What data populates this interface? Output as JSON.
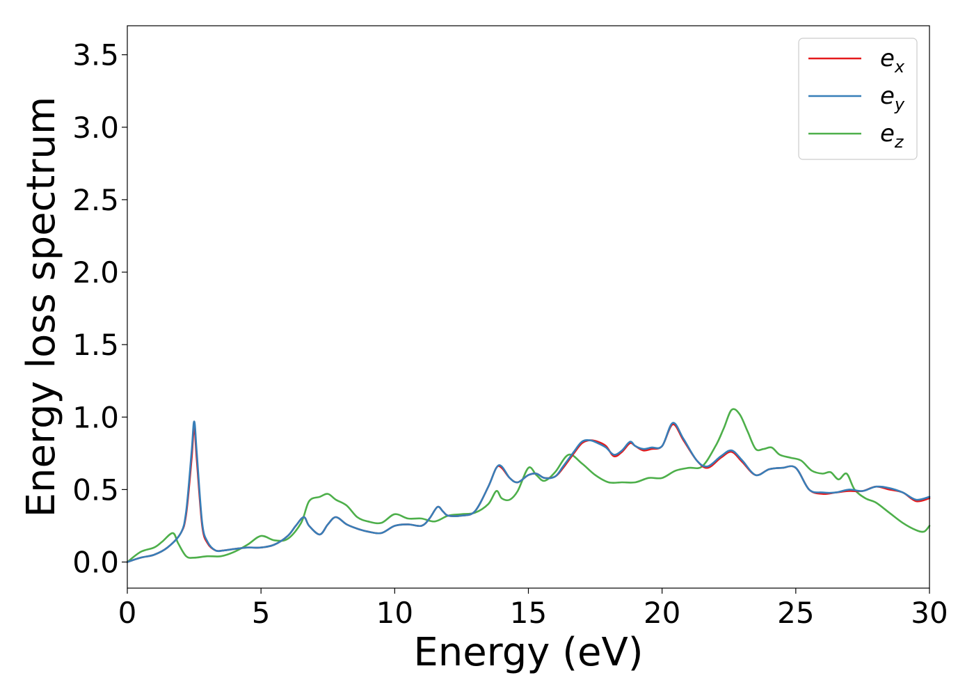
{
  "chart_data": {
    "type": "line",
    "xlabel": "Energy (eV)",
    "ylabel": "Energy loss spectrum",
    "xlim": [
      0,
      30
    ],
    "ylim": [
      -0.18,
      3.7
    ],
    "xticks": [
      "0",
      "5",
      "10",
      "15",
      "20",
      "25",
      "30"
    ],
    "yticks": [
      "0.0",
      "0.5",
      "1.0",
      "1.5",
      "2.0",
      "2.5",
      "3.0",
      "3.5"
    ],
    "grid": false,
    "legend_position": "top-right",
    "series": [
      {
        "name": "e",
        "subscript": "x",
        "color": "#e41a1c",
        "x": [
          0,
          0.5,
          1,
          1.5,
          2,
          2.2,
          2.4,
          2.5,
          2.6,
          2.8,
          3,
          3.3,
          3.6,
          4,
          4.5,
          5,
          5.5,
          6,
          6.3,
          6.6,
          6.8,
          7.2,
          7.5,
          7.8,
          8.2,
          8.6,
          9,
          9.5,
          10,
          10.5,
          11,
          11.3,
          11.6,
          11.8,
          12,
          12.5,
          13,
          13.5,
          13.8,
          14,
          14.3,
          14.6,
          15,
          15.3,
          15.6,
          16,
          16.3,
          16.7,
          17,
          17.3,
          17.6,
          17.9,
          18.2,
          18.5,
          18.8,
          19,
          19.3,
          19.6,
          20,
          20.4,
          20.8,
          21.3,
          21.7,
          22.2,
          22.6,
          23,
          23.5,
          24,
          24.5,
          25,
          25.5,
          26,
          26.5,
          27,
          27.5,
          28,
          28.5,
          29,
          29.5,
          30
        ],
        "y": [
          0,
          0.03,
          0.05,
          0.1,
          0.2,
          0.33,
          0.7,
          0.93,
          0.7,
          0.25,
          0.13,
          0.08,
          0.08,
          0.09,
          0.1,
          0.1,
          0.12,
          0.18,
          0.25,
          0.31,
          0.25,
          0.19,
          0.26,
          0.31,
          0.26,
          0.23,
          0.21,
          0.2,
          0.25,
          0.26,
          0.25,
          0.3,
          0.38,
          0.35,
          0.32,
          0.32,
          0.35,
          0.52,
          0.65,
          0.65,
          0.58,
          0.55,
          0.6,
          0.61,
          0.58,
          0.59,
          0.65,
          0.75,
          0.82,
          0.84,
          0.83,
          0.8,
          0.73,
          0.76,
          0.82,
          0.8,
          0.77,
          0.78,
          0.8,
          0.95,
          0.84,
          0.7,
          0.65,
          0.72,
          0.76,
          0.69,
          0.6,
          0.64,
          0.65,
          0.65,
          0.5,
          0.47,
          0.48,
          0.49,
          0.49,
          0.52,
          0.5,
          0.48,
          0.42,
          0.44
        ]
      },
      {
        "name": "e",
        "subscript": "y",
        "color": "#377eb8",
        "x": [
          0,
          0.5,
          1,
          1.5,
          2,
          2.2,
          2.4,
          2.5,
          2.6,
          2.8,
          3,
          3.3,
          3.6,
          4,
          4.5,
          5,
          5.5,
          6,
          6.3,
          6.6,
          6.8,
          7.2,
          7.5,
          7.8,
          8.2,
          8.6,
          9,
          9.5,
          10,
          10.5,
          11,
          11.3,
          11.6,
          11.8,
          12,
          12.5,
          13,
          13.5,
          13.8,
          14,
          14.3,
          14.6,
          15,
          15.3,
          15.6,
          16,
          16.3,
          16.7,
          17,
          17.3,
          17.6,
          17.9,
          18.2,
          18.5,
          18.8,
          19,
          19.3,
          19.6,
          20,
          20.4,
          20.8,
          21.3,
          21.7,
          22.2,
          22.6,
          23,
          23.5,
          24,
          24.5,
          25,
          25.5,
          26,
          26.5,
          27,
          27.5,
          28,
          28.5,
          29,
          29.5,
          30
        ],
        "y": [
          0,
          0.03,
          0.05,
          0.1,
          0.2,
          0.35,
          0.75,
          0.97,
          0.75,
          0.27,
          0.14,
          0.08,
          0.08,
          0.09,
          0.1,
          0.1,
          0.12,
          0.18,
          0.25,
          0.31,
          0.25,
          0.19,
          0.26,
          0.31,
          0.26,
          0.23,
          0.21,
          0.2,
          0.25,
          0.26,
          0.25,
          0.3,
          0.38,
          0.35,
          0.32,
          0.32,
          0.35,
          0.52,
          0.65,
          0.66,
          0.58,
          0.55,
          0.6,
          0.61,
          0.58,
          0.59,
          0.66,
          0.76,
          0.83,
          0.84,
          0.82,
          0.79,
          0.74,
          0.77,
          0.83,
          0.8,
          0.78,
          0.79,
          0.8,
          0.96,
          0.85,
          0.7,
          0.66,
          0.73,
          0.77,
          0.7,
          0.6,
          0.64,
          0.65,
          0.65,
          0.5,
          0.48,
          0.48,
          0.5,
          0.49,
          0.52,
          0.51,
          0.48,
          0.43,
          0.45
        ]
      },
      {
        "name": "e",
        "subscript": "z",
        "color": "#4daf4a",
        "x": [
          0,
          0.5,
          1,
          1.3,
          1.7,
          1.9,
          2.2,
          2.5,
          3,
          3.5,
          4,
          4.5,
          5,
          5.5,
          6,
          6.5,
          6.8,
          7.2,
          7.5,
          7.8,
          8.2,
          8.6,
          9,
          9.5,
          10,
          10.5,
          11,
          11.5,
          12,
          12.5,
          13,
          13.5,
          13.8,
          14,
          14.3,
          14.6,
          15,
          15.3,
          15.6,
          16,
          16.5,
          17,
          17.5,
          18,
          18.5,
          19,
          19.5,
          20,
          20.5,
          21,
          21.5,
          22,
          22.3,
          22.6,
          22.9,
          23.2,
          23.5,
          23.8,
          24.1,
          24.4,
          24.8,
          25.2,
          25.6,
          26,
          26.3,
          26.6,
          26.9,
          27.2,
          27.6,
          28,
          28.5,
          29,
          29.5,
          29.8,
          30
        ],
        "y": [
          0,
          0.07,
          0.1,
          0.14,
          0.2,
          0.13,
          0.04,
          0.03,
          0.04,
          0.04,
          0.07,
          0.12,
          0.18,
          0.15,
          0.16,
          0.27,
          0.42,
          0.45,
          0.47,
          0.43,
          0.39,
          0.31,
          0.28,
          0.27,
          0.33,
          0.3,
          0.3,
          0.28,
          0.32,
          0.33,
          0.34,
          0.4,
          0.49,
          0.44,
          0.43,
          0.49,
          0.65,
          0.6,
          0.56,
          0.62,
          0.74,
          0.68,
          0.6,
          0.55,
          0.55,
          0.55,
          0.58,
          0.58,
          0.63,
          0.65,
          0.66,
          0.8,
          0.92,
          1.05,
          1.02,
          0.9,
          0.78,
          0.78,
          0.79,
          0.74,
          0.72,
          0.7,
          0.63,
          0.61,
          0.62,
          0.57,
          0.61,
          0.5,
          0.44,
          0.41,
          0.34,
          0.27,
          0.22,
          0.21,
          0.25
        ]
      }
    ]
  }
}
